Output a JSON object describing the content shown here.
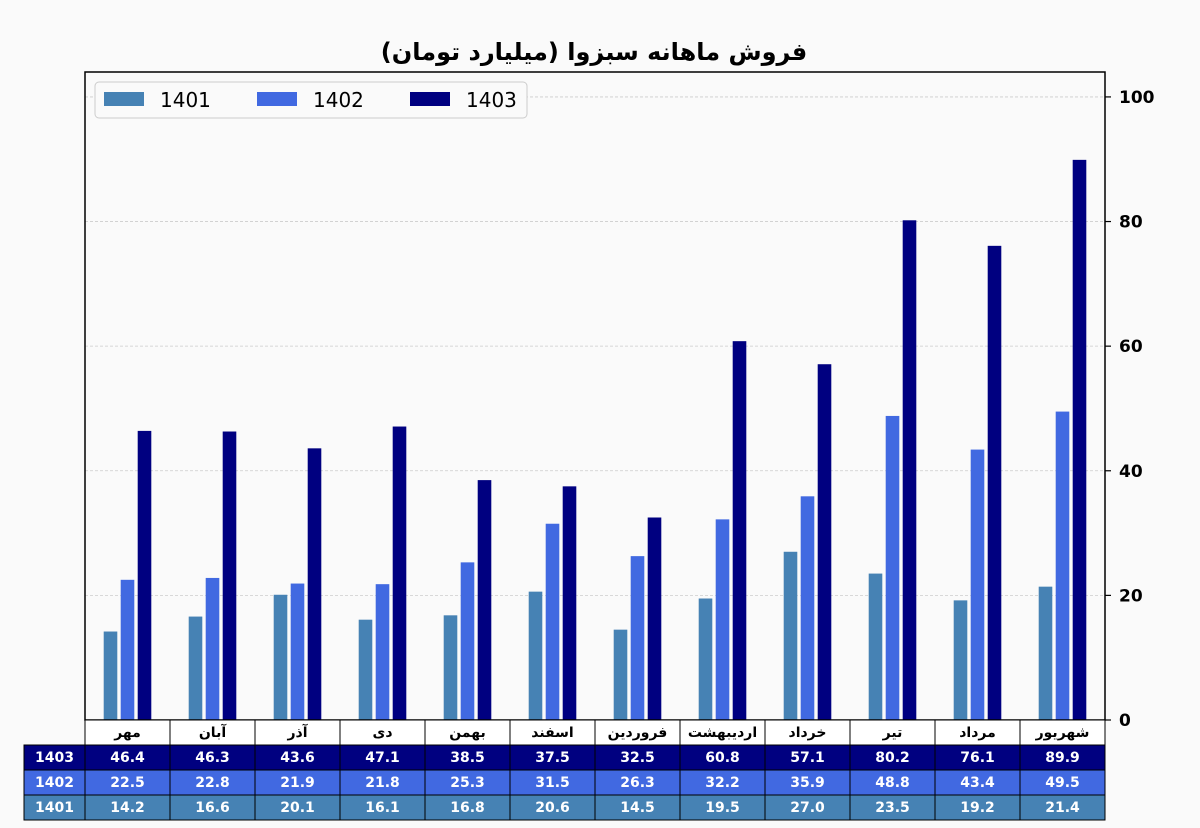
{
  "chart_data": {
    "type": "bar",
    "title": "فروش ماهانه سبزوا (میلیارد تومان)",
    "categories": [
      "مهر",
      "آبان",
      "آذر",
      "دی",
      "بهمن",
      "اسفند",
      "فروردین",
      "اردیبهشت",
      "خرداد",
      "تیر",
      "مرداد",
      "شهریور"
    ],
    "series": [
      {
        "name": "1401",
        "color": "#4682b4",
        "values": [
          14.2,
          16.6,
          20.1,
          16.1,
          16.8,
          20.6,
          14.5,
          19.5,
          27.0,
          23.5,
          19.2,
          21.4
        ]
      },
      {
        "name": "1402",
        "color": "#4169e1",
        "values": [
          22.5,
          22.8,
          21.9,
          21.8,
          25.3,
          31.5,
          26.3,
          32.2,
          35.9,
          48.8,
          43.4,
          49.5
        ]
      },
      {
        "name": "1403",
        "color": "#000080",
        "values": [
          46.4,
          46.3,
          43.6,
          47.1,
          38.5,
          37.5,
          32.5,
          60.8,
          57.1,
          80.2,
          76.1,
          89.9
        ]
      }
    ],
    "ylim": [
      0,
      104
    ],
    "yticks": [
      0,
      20,
      40,
      60,
      80,
      100
    ],
    "yaxis_side": "right",
    "grid": true,
    "legend_position": "top-left",
    "table_rows": [
      {
        "label": "1403",
        "series_index": 2,
        "values": [
          "46.4",
          "46.3",
          "43.6",
          "47.1",
          "38.5",
          "37.5",
          "32.5",
          "60.8",
          "57.1",
          "80.2",
          "76.1",
          "89.9"
        ]
      },
      {
        "label": "1402",
        "series_index": 1,
        "values": [
          "22.5",
          "22.8",
          "21.9",
          "21.8",
          "25.3",
          "31.5",
          "26.3",
          "32.2",
          "35.9",
          "48.8",
          "43.4",
          "49.5"
        ]
      },
      {
        "label": "1401",
        "series_index": 0,
        "values": [
          "14.2",
          "16.6",
          "20.1",
          "16.1",
          "16.8",
          "20.6",
          "14.5",
          "19.5",
          "27.0",
          "23.5",
          "19.2",
          "21.4"
        ]
      }
    ]
  }
}
